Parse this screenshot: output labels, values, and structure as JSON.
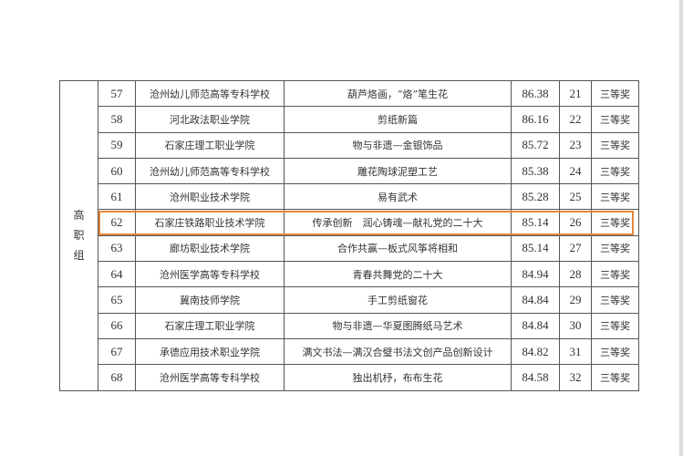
{
  "group_label": [
    "高",
    "职",
    "组"
  ],
  "highlight_color": "#e8873a",
  "rows": [
    {
      "no": "57",
      "school": "沧州幼儿师范高等专科学校",
      "project": "葫芦烙画，“烙”笔生花",
      "score": "86.38",
      "rank": "21",
      "award": "三等奖"
    },
    {
      "no": "58",
      "school": "河北政法职业学院",
      "project": "剪纸新篇",
      "score": "86.16",
      "rank": "22",
      "award": "三等奖"
    },
    {
      "no": "59",
      "school": "石家庄理工职业学院",
      "project": "物与非遗—金银饰品",
      "score": "85.72",
      "rank": "23",
      "award": "三等奖"
    },
    {
      "no": "60",
      "school": "沧州幼儿师范高等专科学校",
      "project": "雕花陶球泥塑工艺",
      "score": "85.38",
      "rank": "24",
      "award": "三等奖"
    },
    {
      "no": "61",
      "school": "沧州职业技术学院",
      "project": "易有武术",
      "score": "85.28",
      "rank": "25",
      "award": "三等奖"
    },
    {
      "no": "62",
      "school": "石家庄铁路职业技术学院",
      "project": "传承创新　润心铸魂—献礼党的二十大",
      "score": "85.14",
      "rank": "26",
      "award": "三等奖"
    },
    {
      "no": "63",
      "school": "廊坊职业技术学院",
      "project": "合作共赢—板式风筝将相和",
      "score": "85.14",
      "rank": "27",
      "award": "三等奖"
    },
    {
      "no": "64",
      "school": "沧州医学高等专科学校",
      "project": "青春共舞党的二十大",
      "score": "84.94",
      "rank": "28",
      "award": "三等奖"
    },
    {
      "no": "65",
      "school": "冀南技师学院",
      "project": "手工剪纸窗花",
      "score": "84.84",
      "rank": "29",
      "award": "三等奖"
    },
    {
      "no": "66",
      "school": "石家庄理工职业学院",
      "project": "物与非遗—华夏图腾纸马艺术",
      "score": "84.84",
      "rank": "30",
      "award": "三等奖"
    },
    {
      "no": "67",
      "school": "承德应用技术职业学院",
      "project": "满文书法—满汉合璧书法文创产品创新设计",
      "score": "84.82",
      "rank": "31",
      "award": "三等奖"
    },
    {
      "no": "68",
      "school": "沧州医学高等专科学校",
      "project": "独出机杼，布布生花",
      "score": "84.58",
      "rank": "32",
      "award": "三等奖"
    }
  ]
}
